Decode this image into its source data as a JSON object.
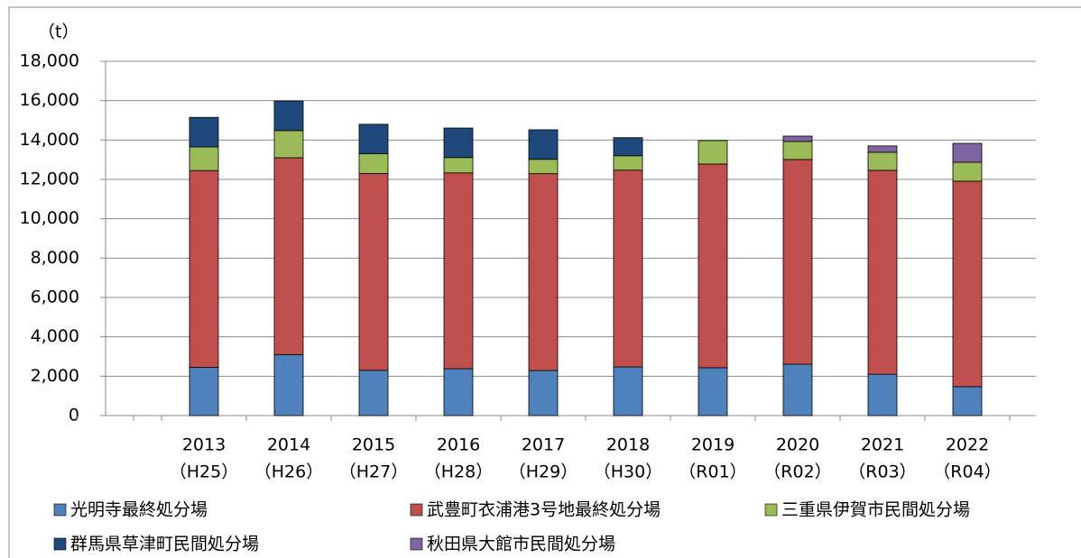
{
  "chart_data": {
    "type": "stacked_bar",
    "y_unit_label": "（t）",
    "categories": [
      [
        "2013",
        "（H25）"
      ],
      [
        "2014",
        "（H26）"
      ],
      [
        "2015",
        "（H27）"
      ],
      [
        "2016",
        "（H28）"
      ],
      [
        "2017",
        "（H29）"
      ],
      [
        "2018",
        "（H30）"
      ],
      [
        "2019",
        "（R01）"
      ],
      [
        "2020",
        "（R02）"
      ],
      [
        "2021",
        "（R03）"
      ],
      [
        "2022",
        "（R04）"
      ]
    ],
    "series": [
      {
        "name": "光明寺最終処分場",
        "color": "#4f81bd",
        "values": [
          2450,
          3100,
          2300,
          2380,
          2290,
          2470,
          2430,
          2610,
          2100,
          1470
        ]
      },
      {
        "name": "武豊町衣浦港3号地最終処分場",
        "color": "#c0504d",
        "values": [
          10000,
          10000,
          10000,
          9950,
          10000,
          10000,
          10350,
          10400,
          10360,
          10440
        ]
      },
      {
        "name": "三重県伊賀市民間処分場",
        "color": "#9bbb59",
        "values": [
          1200,
          1380,
          1000,
          780,
          730,
          730,
          1190,
          920,
          920,
          960
        ]
      },
      {
        "name": "群馬県草津町民間処分場",
        "color": "#1f497d",
        "values": [
          1500,
          1500,
          1500,
          1500,
          1500,
          920,
          null,
          null,
          null,
          null
        ]
      },
      {
        "name": "秋田県大館市民間処分場",
        "color": "#8064a2",
        "values": [
          null,
          null,
          null,
          null,
          null,
          null,
          null,
          270,
          320,
          960
        ]
      }
    ],
    "ylim": [
      0,
      18000
    ],
    "yticks": [
      0,
      {
        "value": 2000,
        "label": "2,000"
      },
      {
        "value": 4000,
        "label": "4,000"
      },
      {
        "value": 6000,
        "label": "6,000"
      },
      {
        "value": 8000,
        "label": "8,000"
      },
      {
        "value": 10000,
        "label": "10,000"
      },
      {
        "value": 12000,
        "label": "12,000"
      },
      {
        "value": 14000,
        "label": "14,000"
      },
      {
        "value": 16000,
        "label": "16,000"
      },
      {
        "value": 18000,
        "label": "18,000"
      }
    ],
    "grid": true,
    "legend": "bottom"
  }
}
